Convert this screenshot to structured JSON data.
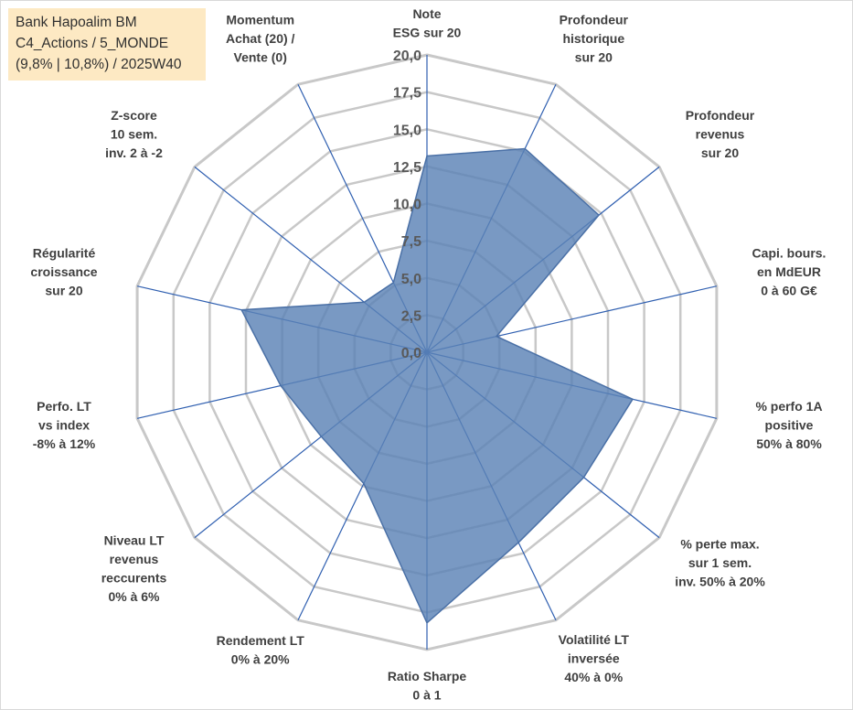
{
  "title_lines": [
    "Bank Hapoalim BM",
    "C4_Actions / 5_MONDE",
    "(9,8% | 10,8%) / 2025W40"
  ],
  "chart_data": {
    "type": "radar",
    "axes": [
      {
        "label_lines": [
          "Note",
          "ESG sur 20"
        ],
        "value": 13.2
      },
      {
        "label_lines": [
          "Profondeur",
          "historique",
          "sur 20"
        ],
        "value": 15.2
      },
      {
        "label_lines": [
          "Profondeur",
          "revenus",
          "sur 20"
        ],
        "value": 14.8
      },
      {
        "label_lines": [
          "Capi. bours.",
          "en MdEUR",
          "0 à 60 G€"
        ],
        "value": 4.8
      },
      {
        "label_lines": [
          "% perfo 1A",
          "positive",
          "50% à 80%"
        ],
        "value": 14.2
      },
      {
        "label_lines": [
          "% perte max.",
          "sur 1 sem.",
          "inv. 50% à 20%"
        ],
        "value": 13.5
      },
      {
        "label_lines": [
          "Volatilité LT",
          "inversée",
          "40% à 0%"
        ],
        "value": 14.2
      },
      {
        "label_lines": [
          "Ratio Sharpe",
          "0 à 1"
        ],
        "value": 18.2
      },
      {
        "label_lines": [
          "Rendement LT",
          "0% à 20%"
        ],
        "value": 9.8
      },
      {
        "label_lines": [
          "Niveau LT",
          "revenus",
          "reccurents",
          "0% à 6%"
        ],
        "value": 9.1
      },
      {
        "label_lines": [
          "Perfo. LT",
          "vs index",
          "-8% à 12%"
        ],
        "value": 10.1
      },
      {
        "label_lines": [
          "Régularité",
          "croissance",
          "sur 20"
        ],
        "value": 12.8
      },
      {
        "label_lines": [
          "Z-score",
          "10 sem.",
          "inv. 2 à -2"
        ],
        "value": 5.4
      },
      {
        "label_lines": [
          "Momentum",
          "Achat (20) /",
          "Vente (0)"
        ],
        "value": 5.2
      }
    ],
    "r_range": [
      0,
      20
    ],
    "r_ticks": [
      "0,0",
      "2,5",
      "5,0",
      "7,5",
      "10,0",
      "12,5",
      "15,0",
      "17,5",
      "20,0"
    ],
    "colors": {
      "fill": "#5b82b6",
      "outline": "#4a70a6",
      "spokes": "#2f5fb0",
      "grid": "#c8c8c8"
    }
  }
}
